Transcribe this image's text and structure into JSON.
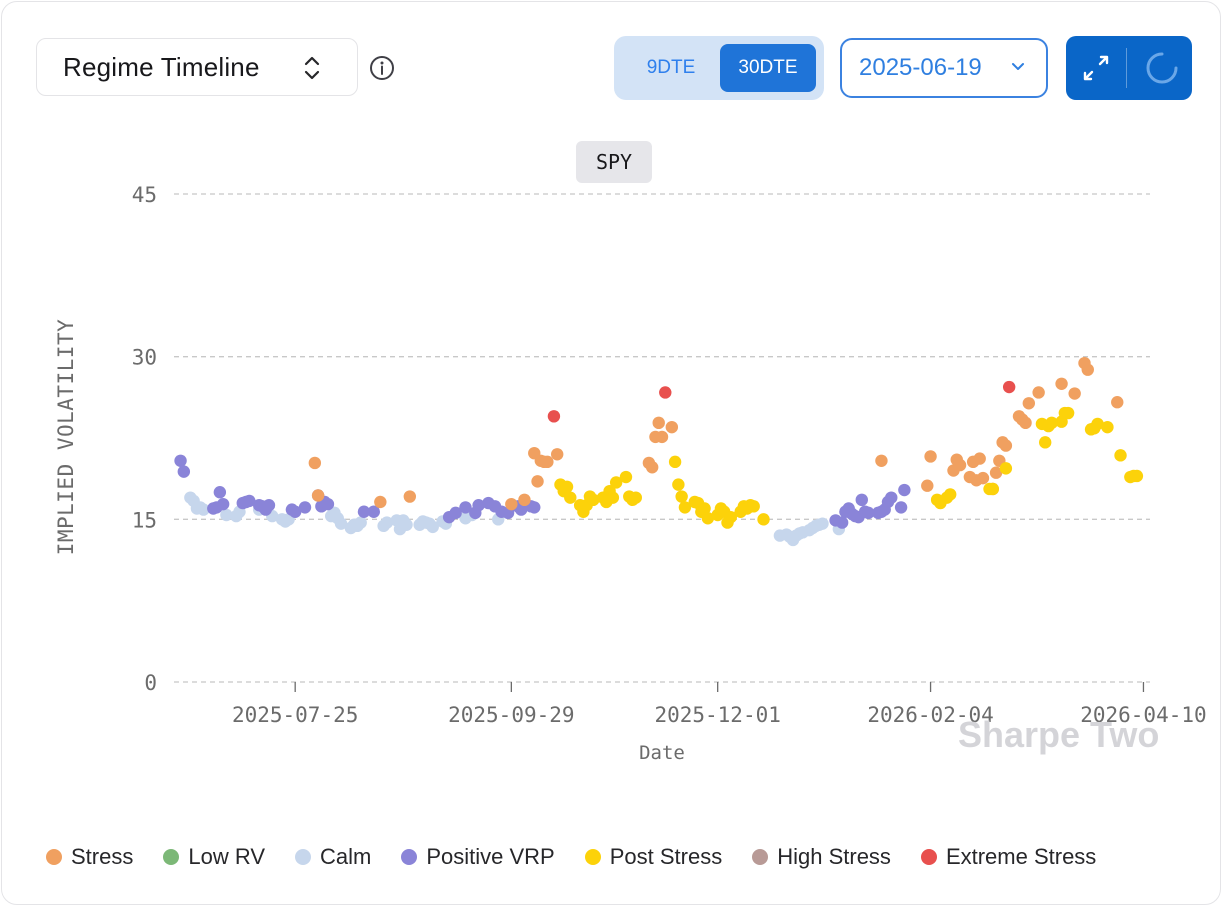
{
  "header": {
    "view_selector": "Regime Timeline",
    "dte_options": [
      "9DTE",
      "30DTE"
    ],
    "dte_selected": "30DTE",
    "date_value": "2025-06-19"
  },
  "ticker": "SPY",
  "watermark": "Sharpe Two",
  "colors": {
    "accent": "#0a66c8",
    "Stress": "#f0a060",
    "Low RV": "#7cb877",
    "Calm": "#c6d6ec",
    "Positive VRP": "#8a84d8",
    "Post Stress": "#fcd20a",
    "High Stress": "#b89a96",
    "Extreme Stress": "#e8504e"
  },
  "chart_data": {
    "type": "scatter",
    "xlabel": "Date",
    "ylabel": "IMPLIED VOLATILITY",
    "ylim": [
      0,
      45
    ],
    "yticks": [
      "0",
      "15",
      "30",
      "45"
    ],
    "xticks": [
      "2025-07-25",
      "2025-09-29",
      "2025-12-01",
      "2026-02-04",
      "2026-04-10"
    ],
    "grid": "horizontal dashed",
    "legend": [
      "Stress",
      "Low RV",
      "Calm",
      "Positive VRP",
      "Post Stress",
      "High Stress",
      "Extreme Stress"
    ],
    "legend_position": "bottom",
    "series": [
      {
        "name": "Stress",
        "points": [
          [
            "2025-07-31",
            20.2
          ],
          [
            "2025-08-01",
            17.2
          ],
          [
            "2025-08-20",
            16.6
          ],
          [
            "2025-08-29",
            17.1
          ],
          [
            "2025-09-29",
            16.4
          ],
          [
            "2025-10-03",
            16.8
          ],
          [
            "2025-10-06",
            21.1
          ],
          [
            "2025-10-07",
            18.5
          ],
          [
            "2025-10-08",
            20.4
          ],
          [
            "2025-10-09",
            20.3
          ],
          [
            "2025-10-10",
            20.3
          ],
          [
            "2025-10-13",
            21.0
          ],
          [
            "2025-11-10",
            20.2
          ],
          [
            "2025-11-11",
            19.8
          ],
          [
            "2025-11-12",
            22.6
          ],
          [
            "2025-11-13",
            23.9
          ],
          [
            "2025-11-14",
            22.6
          ],
          [
            "2025-11-17",
            23.5
          ],
          [
            "2026-01-20",
            20.4
          ],
          [
            "2026-02-03",
            18.1
          ],
          [
            "2026-02-04",
            20.8
          ],
          [
            "2026-02-11",
            19.5
          ],
          [
            "2026-02-12",
            20.5
          ],
          [
            "2026-02-13",
            20.0
          ],
          [
            "2026-02-16",
            18.9
          ],
          [
            "2026-02-17",
            20.3
          ],
          [
            "2026-02-18",
            18.6
          ],
          [
            "2026-02-19",
            20.6
          ],
          [
            "2026-02-20",
            18.8
          ],
          [
            "2026-02-23",
            17.8
          ],
          [
            "2026-02-24",
            19.3
          ],
          [
            "2026-02-25",
            20.4
          ],
          [
            "2026-02-26",
            22.1
          ],
          [
            "2026-02-27",
            21.8
          ],
          [
            "2026-03-03",
            24.5
          ],
          [
            "2026-03-04",
            24.2
          ],
          [
            "2026-03-05",
            23.9
          ],
          [
            "2026-03-06",
            25.7
          ],
          [
            "2026-03-09",
            26.7
          ],
          [
            "2026-03-16",
            27.5
          ],
          [
            "2026-03-20",
            26.6
          ],
          [
            "2026-03-23",
            29.4
          ],
          [
            "2026-03-24",
            28.8
          ],
          [
            "2026-04-02",
            25.8
          ]
        ]
      },
      {
        "name": "Low RV",
        "points": []
      },
      {
        "name": "Calm",
        "points": [
          [
            "2025-06-23",
            17.0
          ],
          [
            "2025-06-24",
            16.7
          ],
          [
            "2025-06-25",
            16.0
          ],
          [
            "2025-06-26",
            16.1
          ],
          [
            "2025-06-27",
            15.9
          ],
          [
            "2025-07-04",
            15.4
          ],
          [
            "2025-07-07",
            15.3
          ],
          [
            "2025-07-08",
            15.7
          ],
          [
            "2025-07-14",
            15.9
          ],
          [
            "2025-07-18",
            15.3
          ],
          [
            "2025-07-21",
            15.0
          ],
          [
            "2025-07-22",
            14.8
          ],
          [
            "2025-07-23",
            15.0
          ],
          [
            "2025-08-05",
            15.3
          ],
          [
            "2025-08-06",
            15.6
          ],
          [
            "2025-08-07",
            15.1
          ],
          [
            "2025-08-08",
            14.6
          ],
          [
            "2025-08-11",
            14.2
          ],
          [
            "2025-08-12",
            14.5
          ],
          [
            "2025-08-13",
            14.4
          ],
          [
            "2025-08-14",
            14.7
          ],
          [
            "2025-08-21",
            14.4
          ],
          [
            "2025-08-22",
            14.7
          ],
          [
            "2025-08-25",
            14.9
          ],
          [
            "2025-08-26",
            14.1
          ],
          [
            "2025-08-27",
            14.9
          ],
          [
            "2025-08-28",
            14.5
          ],
          [
            "2025-09-01",
            14.5
          ],
          [
            "2025-09-02",
            14.8
          ],
          [
            "2025-09-03",
            14.7
          ],
          [
            "2025-09-04",
            14.6
          ],
          [
            "2025-09-05",
            14.3
          ],
          [
            "2025-09-08",
            14.8
          ],
          [
            "2025-09-09",
            14.6
          ],
          [
            "2025-09-15",
            15.1
          ],
          [
            "2025-09-17",
            15.4
          ],
          [
            "2025-09-25",
            15.0
          ],
          [
            "2025-12-20",
            13.5
          ],
          [
            "2025-12-22",
            13.6
          ],
          [
            "2025-12-23",
            13.4
          ],
          [
            "2025-12-24",
            13.1
          ],
          [
            "2025-12-25",
            13.5
          ],
          [
            "2025-12-26",
            13.7
          ],
          [
            "2025-12-27",
            13.8
          ],
          [
            "2025-12-29",
            14.0
          ],
          [
            "2025-12-30",
            14.2
          ],
          [
            "2025-12-31",
            14.4
          ],
          [
            "2026-01-01",
            14.5
          ],
          [
            "2026-01-02",
            14.6
          ],
          [
            "2026-01-07",
            14.1
          ]
        ]
      },
      {
        "name": "Positive VRP",
        "points": [
          [
            "2025-06-20",
            20.4
          ],
          [
            "2025-06-21",
            19.4
          ],
          [
            "2025-06-30",
            16.0
          ],
          [
            "2025-07-01",
            16.1
          ],
          [
            "2025-07-02",
            17.5
          ],
          [
            "2025-07-03",
            16.4
          ],
          [
            "2025-07-09",
            16.5
          ],
          [
            "2025-07-10",
            16.6
          ],
          [
            "2025-07-11",
            16.7
          ],
          [
            "2025-07-14",
            16.3
          ],
          [
            "2025-07-15",
            16.2
          ],
          [
            "2025-07-16",
            15.9
          ],
          [
            "2025-07-17",
            16.3
          ],
          [
            "2025-07-24",
            15.9
          ],
          [
            "2025-07-25",
            15.7
          ],
          [
            "2025-07-28",
            16.1
          ],
          [
            "2025-08-01",
            17.2
          ],
          [
            "2025-08-02",
            16.2
          ],
          [
            "2025-08-03",
            16.6
          ],
          [
            "2025-08-04",
            16.4
          ],
          [
            "2025-08-15",
            15.7
          ],
          [
            "2025-08-18",
            15.7
          ],
          [
            "2025-09-10",
            15.2
          ],
          [
            "2025-09-12",
            15.6
          ],
          [
            "2025-09-15",
            16.1
          ],
          [
            "2025-09-18",
            15.6
          ],
          [
            "2025-09-19",
            16.3
          ],
          [
            "2025-09-22",
            16.5
          ],
          [
            "2025-09-24",
            16.2
          ],
          [
            "2025-09-26",
            15.7
          ],
          [
            "2025-09-28",
            15.6
          ],
          [
            "2025-10-01",
            16.2
          ],
          [
            "2025-10-02",
            15.9
          ],
          [
            "2025-10-05",
            16.2
          ],
          [
            "2025-10-06",
            16.1
          ],
          [
            "2026-01-06",
            14.9
          ],
          [
            "2026-01-08",
            14.7
          ],
          [
            "2026-01-09",
            15.7
          ],
          [
            "2026-01-10",
            16.0
          ],
          [
            "2026-01-11",
            15.5
          ],
          [
            "2026-01-12",
            15.3
          ],
          [
            "2026-01-13",
            15.2
          ],
          [
            "2026-01-14",
            16.8
          ],
          [
            "2026-01-15",
            15.7
          ],
          [
            "2026-01-16",
            15.6
          ],
          [
            "2026-01-19",
            15.6
          ],
          [
            "2026-01-20",
            15.7
          ],
          [
            "2026-01-21",
            15.9
          ],
          [
            "2026-01-22",
            16.6
          ],
          [
            "2026-01-23",
            17.0
          ],
          [
            "2026-01-26",
            16.1
          ],
          [
            "2026-01-27",
            17.7
          ]
        ]
      },
      {
        "name": "Post Stress",
        "points": [
          [
            "2025-10-14",
            18.2
          ],
          [
            "2025-10-15",
            17.6
          ],
          [
            "2025-10-16",
            18.0
          ],
          [
            "2025-10-17",
            17.0
          ],
          [
            "2025-10-20",
            16.3
          ],
          [
            "2025-10-21",
            15.7
          ],
          [
            "2025-10-22",
            16.3
          ],
          [
            "2025-10-23",
            17.1
          ],
          [
            "2025-10-24",
            16.8
          ],
          [
            "2025-10-27",
            17.0
          ],
          [
            "2025-10-28",
            16.6
          ],
          [
            "2025-10-29",
            17.6
          ],
          [
            "2025-10-30",
            17.0
          ],
          [
            "2025-10-31",
            18.4
          ],
          [
            "2025-11-03",
            18.9
          ],
          [
            "2025-11-04",
            17.1
          ],
          [
            "2025-11-05",
            16.8
          ],
          [
            "2025-11-06",
            17.0
          ],
          [
            "2025-11-18",
            20.3
          ],
          [
            "2025-11-19",
            18.2
          ],
          [
            "2025-11-20",
            17.1
          ],
          [
            "2025-11-21",
            16.1
          ],
          [
            "2025-11-24",
            16.6
          ],
          [
            "2025-11-25",
            16.5
          ],
          [
            "2025-11-26",
            15.7
          ],
          [
            "2025-11-27",
            16.0
          ],
          [
            "2025-11-28",
            15.1
          ],
          [
            "2025-12-01",
            15.4
          ],
          [
            "2025-12-02",
            16.0
          ],
          [
            "2025-12-03",
            15.7
          ],
          [
            "2025-12-04",
            14.7
          ],
          [
            "2025-12-05",
            15.2
          ],
          [
            "2025-12-08",
            15.7
          ],
          [
            "2025-12-09",
            16.2
          ],
          [
            "2025-12-10",
            16.0
          ],
          [
            "2025-12-11",
            16.3
          ],
          [
            "2025-12-12",
            16.2
          ],
          [
            "2025-12-15",
            15.0
          ],
          [
            "2026-02-06",
            16.8
          ],
          [
            "2026-02-07",
            16.5
          ],
          [
            "2026-02-09",
            17.0
          ],
          [
            "2026-02-10",
            17.3
          ],
          [
            "2026-02-22",
            17.8
          ],
          [
            "2026-02-23",
            17.8
          ],
          [
            "2026-02-27",
            19.7
          ],
          [
            "2026-03-10",
            23.8
          ],
          [
            "2026-03-11",
            22.1
          ],
          [
            "2026-03-12",
            23.6
          ],
          [
            "2026-03-13",
            23.9
          ],
          [
            "2026-03-16",
            24.0
          ],
          [
            "2026-03-17",
            24.8
          ],
          [
            "2026-03-18",
            24.8
          ],
          [
            "2026-03-25",
            23.3
          ],
          [
            "2026-03-26",
            23.4
          ],
          [
            "2026-03-27",
            23.8
          ],
          [
            "2026-03-30",
            23.5
          ],
          [
            "2026-04-03",
            20.9
          ],
          [
            "2026-04-06",
            18.9
          ],
          [
            "2026-04-07",
            19.0
          ],
          [
            "2026-04-08",
            19.0
          ]
        ]
      },
      {
        "name": "High Stress",
        "points": []
      },
      {
        "name": "Extreme Stress",
        "points": [
          [
            "2025-10-12",
            24.5
          ],
          [
            "2025-11-15",
            26.7
          ],
          [
            "2026-02-28",
            27.2
          ]
        ]
      }
    ]
  },
  "axis_dates": {
    "start": "2025-06-18",
    "end": "2026-04-12"
  }
}
